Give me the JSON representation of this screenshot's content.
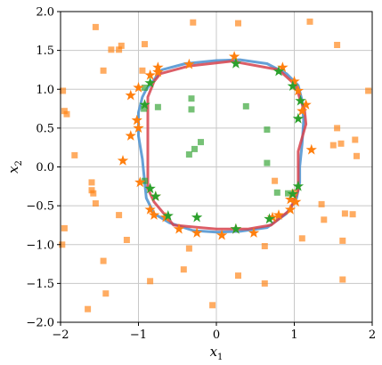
{
  "chart_data": {
    "type": "scatter",
    "title": "",
    "xlabel": "x",
    "xlabel_sub": "1",
    "ylabel": "x",
    "ylabel_sub": "2",
    "xlim": [
      -2,
      2
    ],
    "ylim": [
      -2,
      2
    ],
    "grid": true,
    "x_ticks": [
      -2,
      -1,
      0,
      1,
      2
    ],
    "x_tick_labels": [
      "−2",
      "−1",
      "0",
      "1",
      "2"
    ],
    "y_ticks": [
      2.0,
      1.5,
      1.0,
      0.5,
      0.0,
      -0.5,
      -1.0,
      -1.5,
      -2.0
    ],
    "y_tick_labels": [
      "2.0",
      "1.5",
      "1.0",
      "0.5",
      "0.0",
      "−0.5",
      "−1.0",
      "−1.5",
      "−2.0"
    ],
    "colors": {
      "orange": "#ff7f0e",
      "green": "#2ca02c",
      "blue_curve": "#4a90d0",
      "red_curve": "#d6424c",
      "grid": "#c8c8c8"
    },
    "series": [
      {
        "marker": "square",
        "color": "#ff7f0e",
        "points": [
          [
            -1.55,
            1.8
          ],
          [
            -1.35,
            1.51
          ],
          [
            -1.25,
            1.51
          ],
          [
            -1.22,
            1.56
          ],
          [
            -0.92,
            1.58
          ],
          [
            -0.3,
            1.86
          ],
          [
            0.28,
            1.85
          ],
          [
            1.2,
            1.87
          ],
          [
            1.55,
            1.57
          ],
          [
            1.95,
            0.98
          ],
          [
            -1.97,
            0.98
          ],
          [
            -1.45,
            1.24
          ],
          [
            -0.95,
            1.24
          ],
          [
            -1.95,
            0.72
          ],
          [
            -1.92,
            0.68
          ],
          [
            -1.82,
            0.15
          ],
          [
            -1.6,
            -0.2
          ],
          [
            -1.6,
            -0.3
          ],
          [
            -1.58,
            -0.34
          ],
          [
            -1.55,
            -0.47
          ],
          [
            -1.95,
            -0.79
          ],
          [
            -1.25,
            -0.62
          ],
          [
            -1.15,
            -0.94
          ],
          [
            -1.98,
            -1.0
          ],
          [
            -1.45,
            -1.21
          ],
          [
            -1.42,
            -1.63
          ],
          [
            -1.65,
            -1.83
          ],
          [
            -0.85,
            -1.47
          ],
          [
            -0.42,
            -1.32
          ],
          [
            -0.35,
            -1.05
          ],
          [
            -0.05,
            -1.78
          ],
          [
            0.28,
            -1.4
          ],
          [
            0.62,
            -1.02
          ],
          [
            0.62,
            -1.5
          ],
          [
            1.1,
            -0.92
          ],
          [
            1.35,
            -0.48
          ],
          [
            1.38,
            -0.68
          ],
          [
            1.62,
            -0.95
          ],
          [
            1.65,
            -0.6
          ],
          [
            1.75,
            -0.61
          ],
          [
            1.62,
            -1.45
          ],
          [
            1.55,
            0.5
          ],
          [
            1.6,
            0.3
          ],
          [
            1.78,
            0.35
          ],
          [
            1.8,
            0.14
          ],
          [
            1.5,
            0.28
          ],
          [
            0.75,
            -0.18
          ],
          [
            1.0,
            -0.33
          ]
        ]
      },
      {
        "marker": "square",
        "color": "#2ca02c",
        "points": [
          [
            -0.75,
            0.77
          ],
          [
            -0.32,
            0.88
          ],
          [
            -0.32,
            0.74
          ],
          [
            -0.28,
            0.23
          ],
          [
            -0.35,
            0.16
          ],
          [
            -0.2,
            0.32
          ],
          [
            0.38,
            0.78
          ],
          [
            0.65,
            0.48
          ],
          [
            0.65,
            0.05
          ],
          [
            0.78,
            -0.33
          ],
          [
            0.92,
            -0.34
          ],
          [
            -0.93,
            0.75
          ],
          [
            -0.92,
            1.02
          ],
          [
            -0.92,
            -0.18
          ]
        ]
      },
      {
        "marker": "star",
        "color": "#ff7f0e",
        "points": [
          [
            -0.75,
            1.28
          ],
          [
            -0.85,
            1.18
          ],
          [
            -0.75,
            1.22
          ],
          [
            -0.35,
            1.32
          ],
          [
            0.23,
            1.42
          ],
          [
            0.85,
            1.28
          ],
          [
            1.0,
            1.1
          ],
          [
            1.05,
            0.98
          ],
          [
            1.15,
            0.8
          ],
          [
            1.1,
            0.72
          ],
          [
            1.22,
            0.22
          ],
          [
            -1.1,
            0.92
          ],
          [
            -1.0,
            1.02
          ],
          [
            -1.02,
            0.6
          ],
          [
            -1.0,
            0.5
          ],
          [
            -1.1,
            0.4
          ],
          [
            -1.2,
            0.08
          ],
          [
            -0.98,
            -0.2
          ],
          [
            -0.78,
            -0.38
          ],
          [
            -0.85,
            -0.55
          ],
          [
            -0.8,
            -0.62
          ],
          [
            -0.65,
            -0.65
          ],
          [
            -0.48,
            -0.8
          ],
          [
            -0.25,
            -0.85
          ],
          [
            0.07,
            -0.88
          ],
          [
            0.25,
            -0.8
          ],
          [
            0.48,
            -0.85
          ],
          [
            0.72,
            -0.65
          ],
          [
            0.8,
            -0.62
          ],
          [
            0.95,
            -0.55
          ],
          [
            1.02,
            -0.45
          ],
          [
            0.95,
            -0.42
          ]
        ]
      },
      {
        "marker": "star",
        "color": "#2ca02c",
        "points": [
          [
            0.25,
            1.33
          ],
          [
            0.8,
            1.23
          ],
          [
            0.98,
            1.04
          ],
          [
            1.08,
            0.85
          ],
          [
            1.05,
            0.62
          ],
          [
            -0.92,
            0.8
          ],
          [
            -0.85,
            1.08
          ],
          [
            -0.85,
            -0.28
          ],
          [
            -0.78,
            -0.38
          ],
          [
            -0.62,
            -0.63
          ],
          [
            -0.25,
            -0.65
          ],
          [
            0.25,
            -0.8
          ],
          [
            0.68,
            -0.67
          ],
          [
            0.98,
            -0.35
          ],
          [
            1.05,
            -0.25
          ]
        ]
      }
    ],
    "boundaries": [
      {
        "color": "#4a90d0",
        "points": [
          [
            -0.9,
            1.0
          ],
          [
            -0.7,
            1.25
          ],
          [
            -0.4,
            1.33
          ],
          [
            0.0,
            1.37
          ],
          [
            0.3,
            1.38
          ],
          [
            0.65,
            1.33
          ],
          [
            0.9,
            1.2
          ],
          [
            1.05,
            1.05
          ],
          [
            1.1,
            0.85
          ],
          [
            1.12,
            0.6
          ],
          [
            1.1,
            0.3
          ],
          [
            1.07,
            0.0
          ],
          [
            1.07,
            -0.2
          ],
          [
            1.03,
            -0.4
          ],
          [
            0.9,
            -0.6
          ],
          [
            0.65,
            -0.78
          ],
          [
            0.3,
            -0.83
          ],
          [
            0.0,
            -0.84
          ],
          [
            -0.3,
            -0.82
          ],
          [
            -0.6,
            -0.72
          ],
          [
            -0.8,
            -0.6
          ],
          [
            -0.9,
            -0.4
          ],
          [
            -0.92,
            -0.2
          ],
          [
            -0.95,
            0.1
          ],
          [
            -1.0,
            0.4
          ],
          [
            -1.0,
            0.7
          ],
          [
            -0.95,
            0.9
          ],
          [
            -0.9,
            1.0
          ]
        ]
      },
      {
        "color": "#d6424c",
        "points": [
          [
            -0.8,
            1.1
          ],
          [
            -0.72,
            1.2
          ],
          [
            -0.35,
            1.3
          ],
          [
            0.2,
            1.36
          ],
          [
            0.8,
            1.25
          ],
          [
            1.02,
            1.05
          ],
          [
            1.08,
            0.85
          ],
          [
            1.13,
            0.75
          ],
          [
            1.15,
            0.55
          ],
          [
            1.05,
            0.2
          ],
          [
            1.05,
            -0.1
          ],
          [
            1.05,
            -0.3
          ],
          [
            0.95,
            -0.55
          ],
          [
            0.7,
            -0.75
          ],
          [
            0.4,
            -0.8
          ],
          [
            0.0,
            -0.8
          ],
          [
            -0.55,
            -0.75
          ],
          [
            -0.8,
            -0.45
          ],
          [
            -0.88,
            -0.28
          ],
          [
            -0.88,
            0.9
          ],
          [
            -0.8,
            1.1
          ]
        ]
      }
    ]
  }
}
